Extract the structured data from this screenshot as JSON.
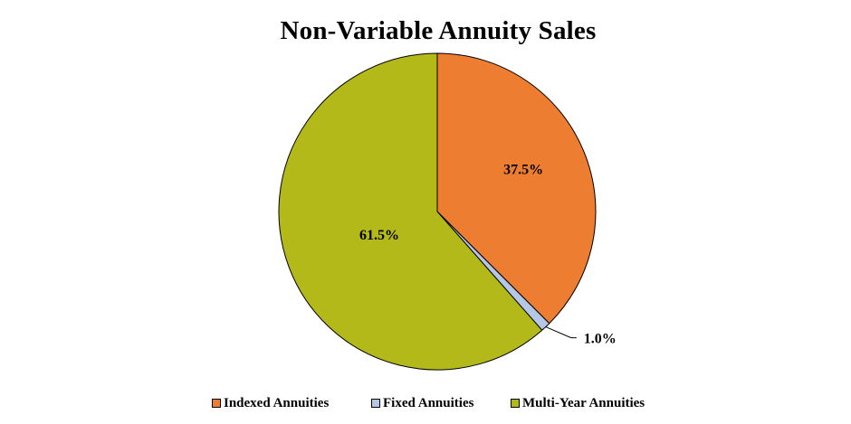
{
  "chart_data": {
    "type": "pie",
    "title": "Non-Variable Annuity Sales",
    "categories": [
      "Indexed Annuities",
      "Fixed Annuities",
      "Multi-Year Annuities"
    ],
    "values": [
      37.5,
      1.0,
      61.5
    ],
    "data_labels": [
      "37.5%",
      "1.0%",
      "61.5%"
    ],
    "colors": [
      "#ED7D31",
      "#B4C7E7",
      "#B4B91A"
    ],
    "start_angle": "12 o'clock",
    "direction": "clockwise",
    "legend_position": "bottom"
  }
}
